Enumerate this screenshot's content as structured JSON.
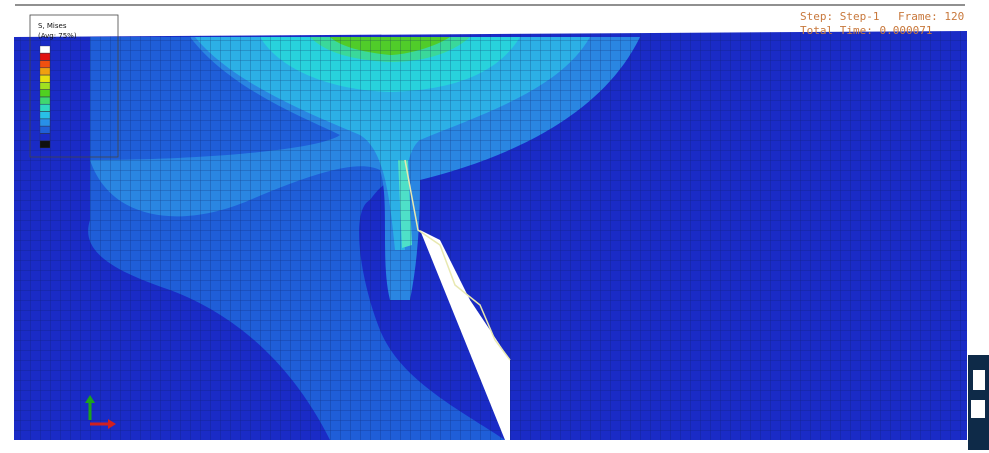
{
  "legend": {
    "title": "S, Mises",
    "subtitle": "(Avg: 75%)"
  },
  "status": {
    "step": "Step: Step-1",
    "frame": "Frame: 120",
    "time": "Total Time: 0.000071"
  }
}
